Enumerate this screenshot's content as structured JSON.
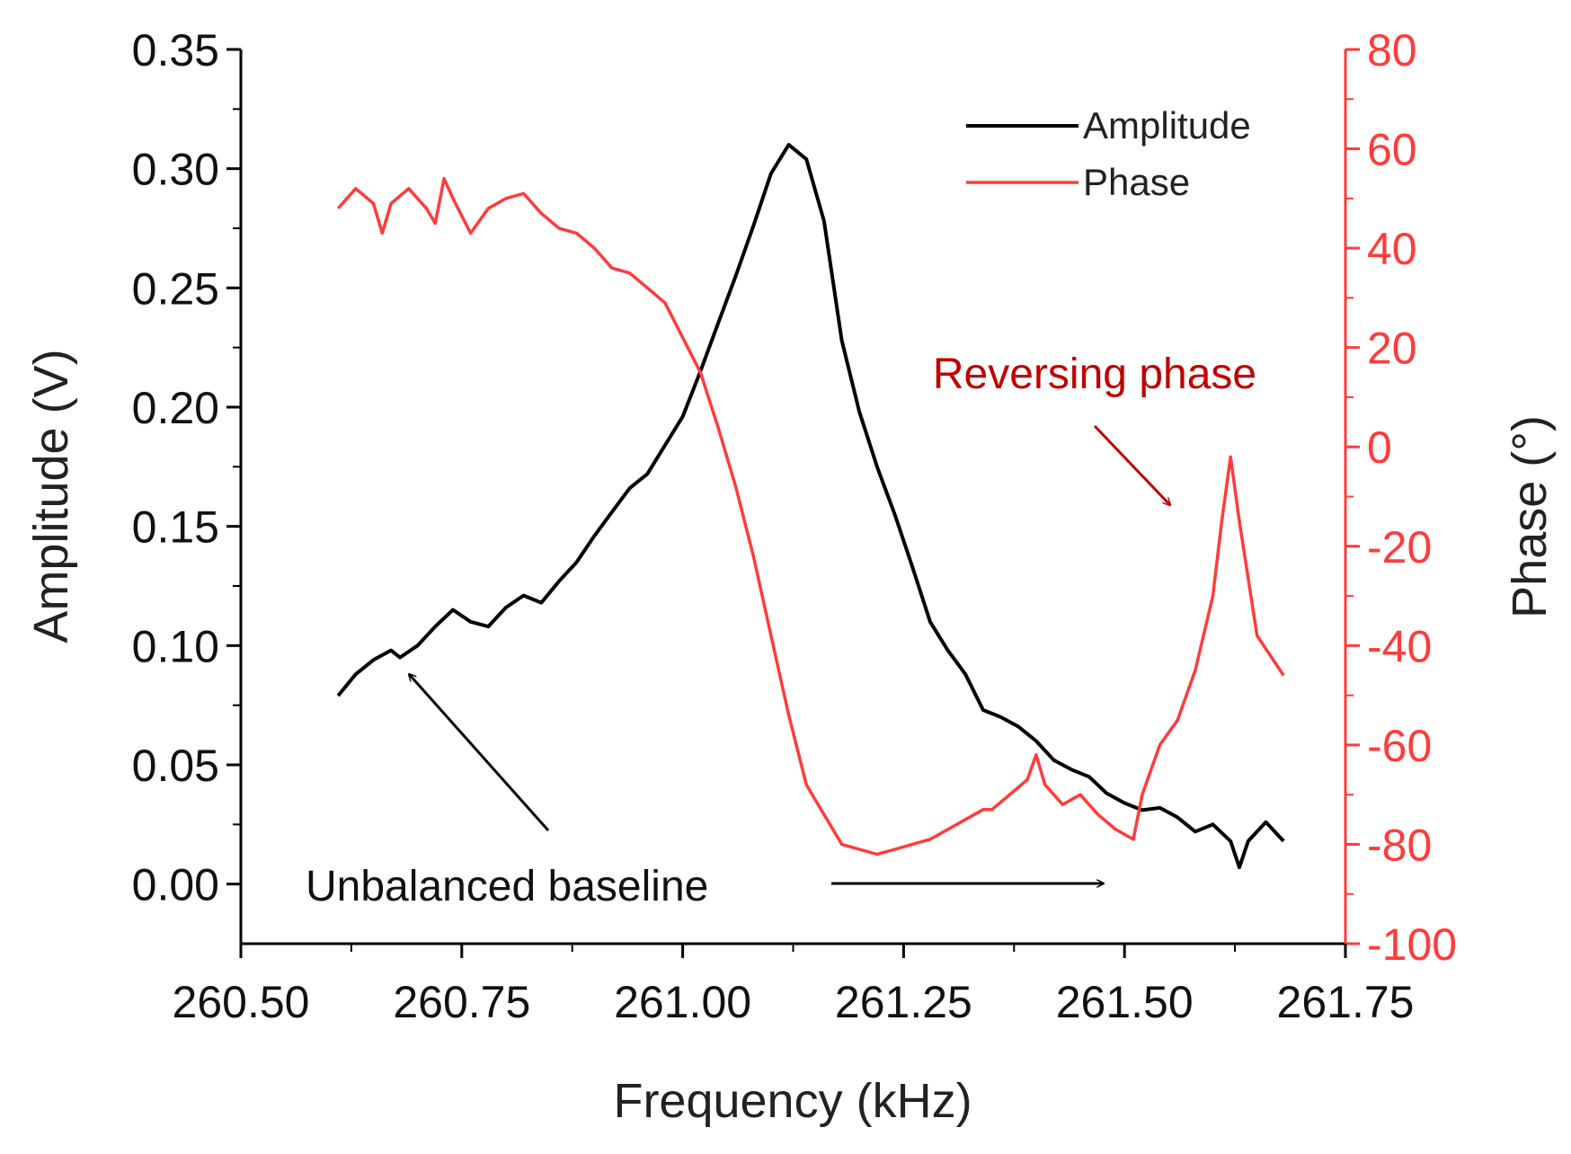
{
  "chart_data": {
    "type": "line",
    "title": "",
    "xlabel": "Frequency (kHz)",
    "ylabel": "Amplitude (V)",
    "y2label": "Phase (°)",
    "xlim": [
      260.5,
      261.75
    ],
    "ylim": [
      -0.025,
      0.35
    ],
    "y2lim": [
      -100,
      80
    ],
    "xticks": [
      "260.50",
      "260.75",
      "261.00",
      "261.25",
      "261.50",
      "261.75"
    ],
    "yticks": [
      "0.00",
      "0.05",
      "0.10",
      "0.15",
      "0.20",
      "0.25",
      "0.30",
      "0.35"
    ],
    "y2ticks": [
      "-100",
      "-80",
      "-60",
      "-40",
      "-20",
      "0",
      "20",
      "40",
      "60",
      "80"
    ],
    "grid": false,
    "legend_position": "top-right",
    "legend": [
      "Amplitude",
      "Phase"
    ],
    "colors": {
      "amplitude": "#000000",
      "phase": "#ff3b3b",
      "annotation_red": "#c00000",
      "axis_right": "#ff3b3b"
    },
    "series": [
      {
        "name": "Amplitude",
        "axis": "left",
        "x": [
          260.61,
          260.63,
          260.65,
          260.67,
          260.68,
          260.7,
          260.72,
          260.74,
          260.76,
          260.78,
          260.8,
          260.82,
          260.84,
          260.86,
          260.88,
          260.9,
          260.92,
          260.94,
          260.96,
          260.98,
          261.0,
          261.02,
          261.04,
          261.06,
          261.08,
          261.1,
          261.12,
          261.14,
          261.16,
          261.18,
          261.2,
          261.22,
          261.24,
          261.26,
          261.28,
          261.3,
          261.32,
          261.34,
          261.36,
          261.38,
          261.4,
          261.42,
          261.44,
          261.46,
          261.48,
          261.5,
          261.52,
          261.54,
          261.56,
          261.58,
          261.6,
          261.62,
          261.63,
          261.64,
          261.66,
          261.68
        ],
        "y": [
          0.079,
          0.088,
          0.094,
          0.098,
          0.095,
          0.1,
          0.108,
          0.115,
          0.11,
          0.108,
          0.116,
          0.121,
          0.118,
          0.127,
          0.135,
          0.146,
          0.156,
          0.166,
          0.172,
          0.184,
          0.196,
          0.215,
          0.235,
          0.255,
          0.276,
          0.298,
          0.31,
          0.304,
          0.278,
          0.228,
          0.198,
          0.175,
          0.155,
          0.133,
          0.11,
          0.098,
          0.088,
          0.073,
          0.07,
          0.066,
          0.06,
          0.052,
          0.048,
          0.045,
          0.038,
          0.034,
          0.031,
          0.032,
          0.028,
          0.022,
          0.025,
          0.018,
          0.007,
          0.018,
          0.026,
          0.018
        ]
      },
      {
        "name": "Phase",
        "axis": "right",
        "x": [
          260.61,
          260.63,
          260.65,
          260.66,
          260.67,
          260.69,
          260.71,
          260.72,
          260.73,
          260.74,
          260.76,
          260.78,
          260.8,
          260.82,
          260.84,
          260.86,
          260.88,
          260.9,
          260.92,
          260.94,
          260.96,
          260.98,
          261.0,
          261.02,
          261.04,
          261.06,
          261.08,
          261.1,
          261.12,
          261.14,
          261.16,
          261.18,
          261.2,
          261.22,
          261.24,
          261.26,
          261.28,
          261.3,
          261.32,
          261.34,
          261.35,
          261.37,
          261.39,
          261.4,
          261.41,
          261.43,
          261.45,
          261.47,
          261.49,
          261.51,
          261.52,
          261.54,
          261.56,
          261.58,
          261.6,
          261.61,
          261.62,
          261.63,
          261.65,
          261.68
        ],
        "y": [
          48,
          52,
          49,
          43,
          49,
          52,
          48,
          45,
          54,
          50,
          43,
          48,
          50,
          51,
          47,
          44,
          43,
          40,
          36,
          35,
          32,
          29,
          22,
          15,
          4,
          -8,
          -22,
          -38,
          -54,
          -68,
          -74,
          -80,
          -81,
          -82,
          -81,
          -80,
          -79,
          -77,
          -75,
          -73,
          -73,
          -70,
          -67,
          -62,
          -68,
          -72,
          -70,
          -74,
          -77,
          -79,
          -70,
          -60,
          -55,
          -45,
          -30,
          -15,
          -2,
          -15,
          -38,
          -46
        ]
      }
    ],
    "annotations": [
      {
        "text": "Reversing phase",
        "target": {
          "x": 261.6,
          "y2": -12
        },
        "color": "annotation_red"
      },
      {
        "text": "Unbalanced baseline",
        "targets": [
          {
            "x": 260.68,
            "y": 0.094
          },
          {
            "x": 261.52,
            "y": 0.0
          }
        ],
        "color": "amplitude"
      }
    ]
  }
}
